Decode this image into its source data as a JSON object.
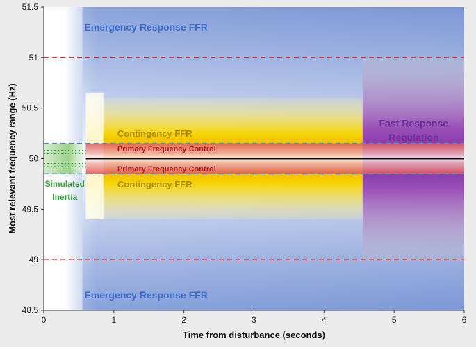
{
  "chart_data": {
    "type": "area",
    "title": "",
    "xlabel": "Time from disturbance (seconds)",
    "ylabel": "Most relevant frequency range (Hz)",
    "xlim": [
      0,
      6
    ],
    "ylim": [
      48.5,
      51.5
    ],
    "x_ticks": [
      "0",
      "1",
      "2",
      "3",
      "4",
      "5",
      "6"
    ],
    "y_ticks": [
      "48.5",
      "49",
      "49.5",
      "50",
      "50.5",
      "51",
      "51.5"
    ],
    "grid": false,
    "nominal_frequency": 50,
    "reference_lines": [
      {
        "y": 51.0,
        "color": "#cc3333",
        "style": "dashed"
      },
      {
        "y": 49.0,
        "color": "#cc3333",
        "style": "dashed"
      },
      {
        "y": 50.15,
        "color": "#5a8ac6",
        "style": "dashed"
      },
      {
        "y": 49.85,
        "color": "#5a8ac6",
        "style": "dashed"
      }
    ],
    "regions": [
      {
        "name": "Emergency Response FFR",
        "x": [
          0.3,
          6
        ],
        "y": [
          48.5,
          51.5
        ],
        "color": "#7f9bd8"
      },
      {
        "name": "Contingency FFR",
        "x": [
          0.6,
          4.55
        ],
        "y": [
          49.4,
          50.6
        ],
        "color": "#f0d000"
      },
      {
        "name": "Primary Frequency Control",
        "x": [
          0.6,
          4.55
        ],
        "y": [
          49.85,
          50.15
        ],
        "color": "#d02a2a"
      },
      {
        "name": "Fast Response Regulation",
        "x": [
          4.55,
          6
        ],
        "y": [
          48.5,
          51.5
        ],
        "color": "#8a2eb0"
      },
      {
        "name": "Simulated Inertia",
        "x": [
          0,
          0.6
        ],
        "y": [
          49.85,
          50.15
        ],
        "color": "#4cb04c"
      }
    ],
    "labels": {
      "emergency_top": "Emergency Response FFR",
      "emergency_bottom": "Emergency Response FFR",
      "contingency_top": "Contingency FFR",
      "contingency_bottom": "Contingency FFR",
      "primary_top": "Primary Frequency Control",
      "primary_bottom": "Primary Frequency Control",
      "fast_response_line1": "Fast Response",
      "fast_response_line2": "Regulation",
      "inertia_line1": "Simulated",
      "inertia_line2": "Inertia"
    },
    "colors": {
      "emergency_text": "#3b6cc6",
      "contingency_text": "#b08a10",
      "primary_text": "#b01e2a",
      "fast_response_text": "#6b2d9a",
      "inertia_text": "#3aa03a"
    }
  }
}
